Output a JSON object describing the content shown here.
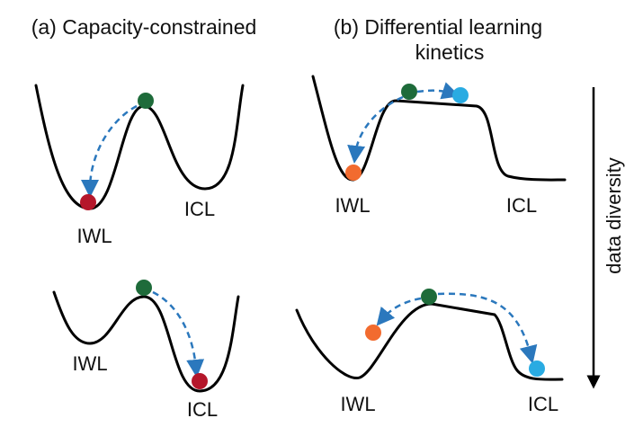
{
  "panels": [
    {
      "title_lines": [
        "(a) Capacity-constrained"
      ],
      "landscapes": [
        {
          "labels": [
            "IWL",
            "ICL"
          ]
        },
        {
          "labels": [
            "IWL",
            "ICL"
          ]
        }
      ]
    },
    {
      "title_lines": [
        "(b) Differential learning",
        "kinetics"
      ],
      "landscapes": [
        {
          "labels": [
            "IWL",
            "ICL"
          ]
        },
        {
          "labels": [
            "IWL",
            "ICL"
          ]
        }
      ]
    }
  ],
  "axis": {
    "label": "data diversity"
  }
}
